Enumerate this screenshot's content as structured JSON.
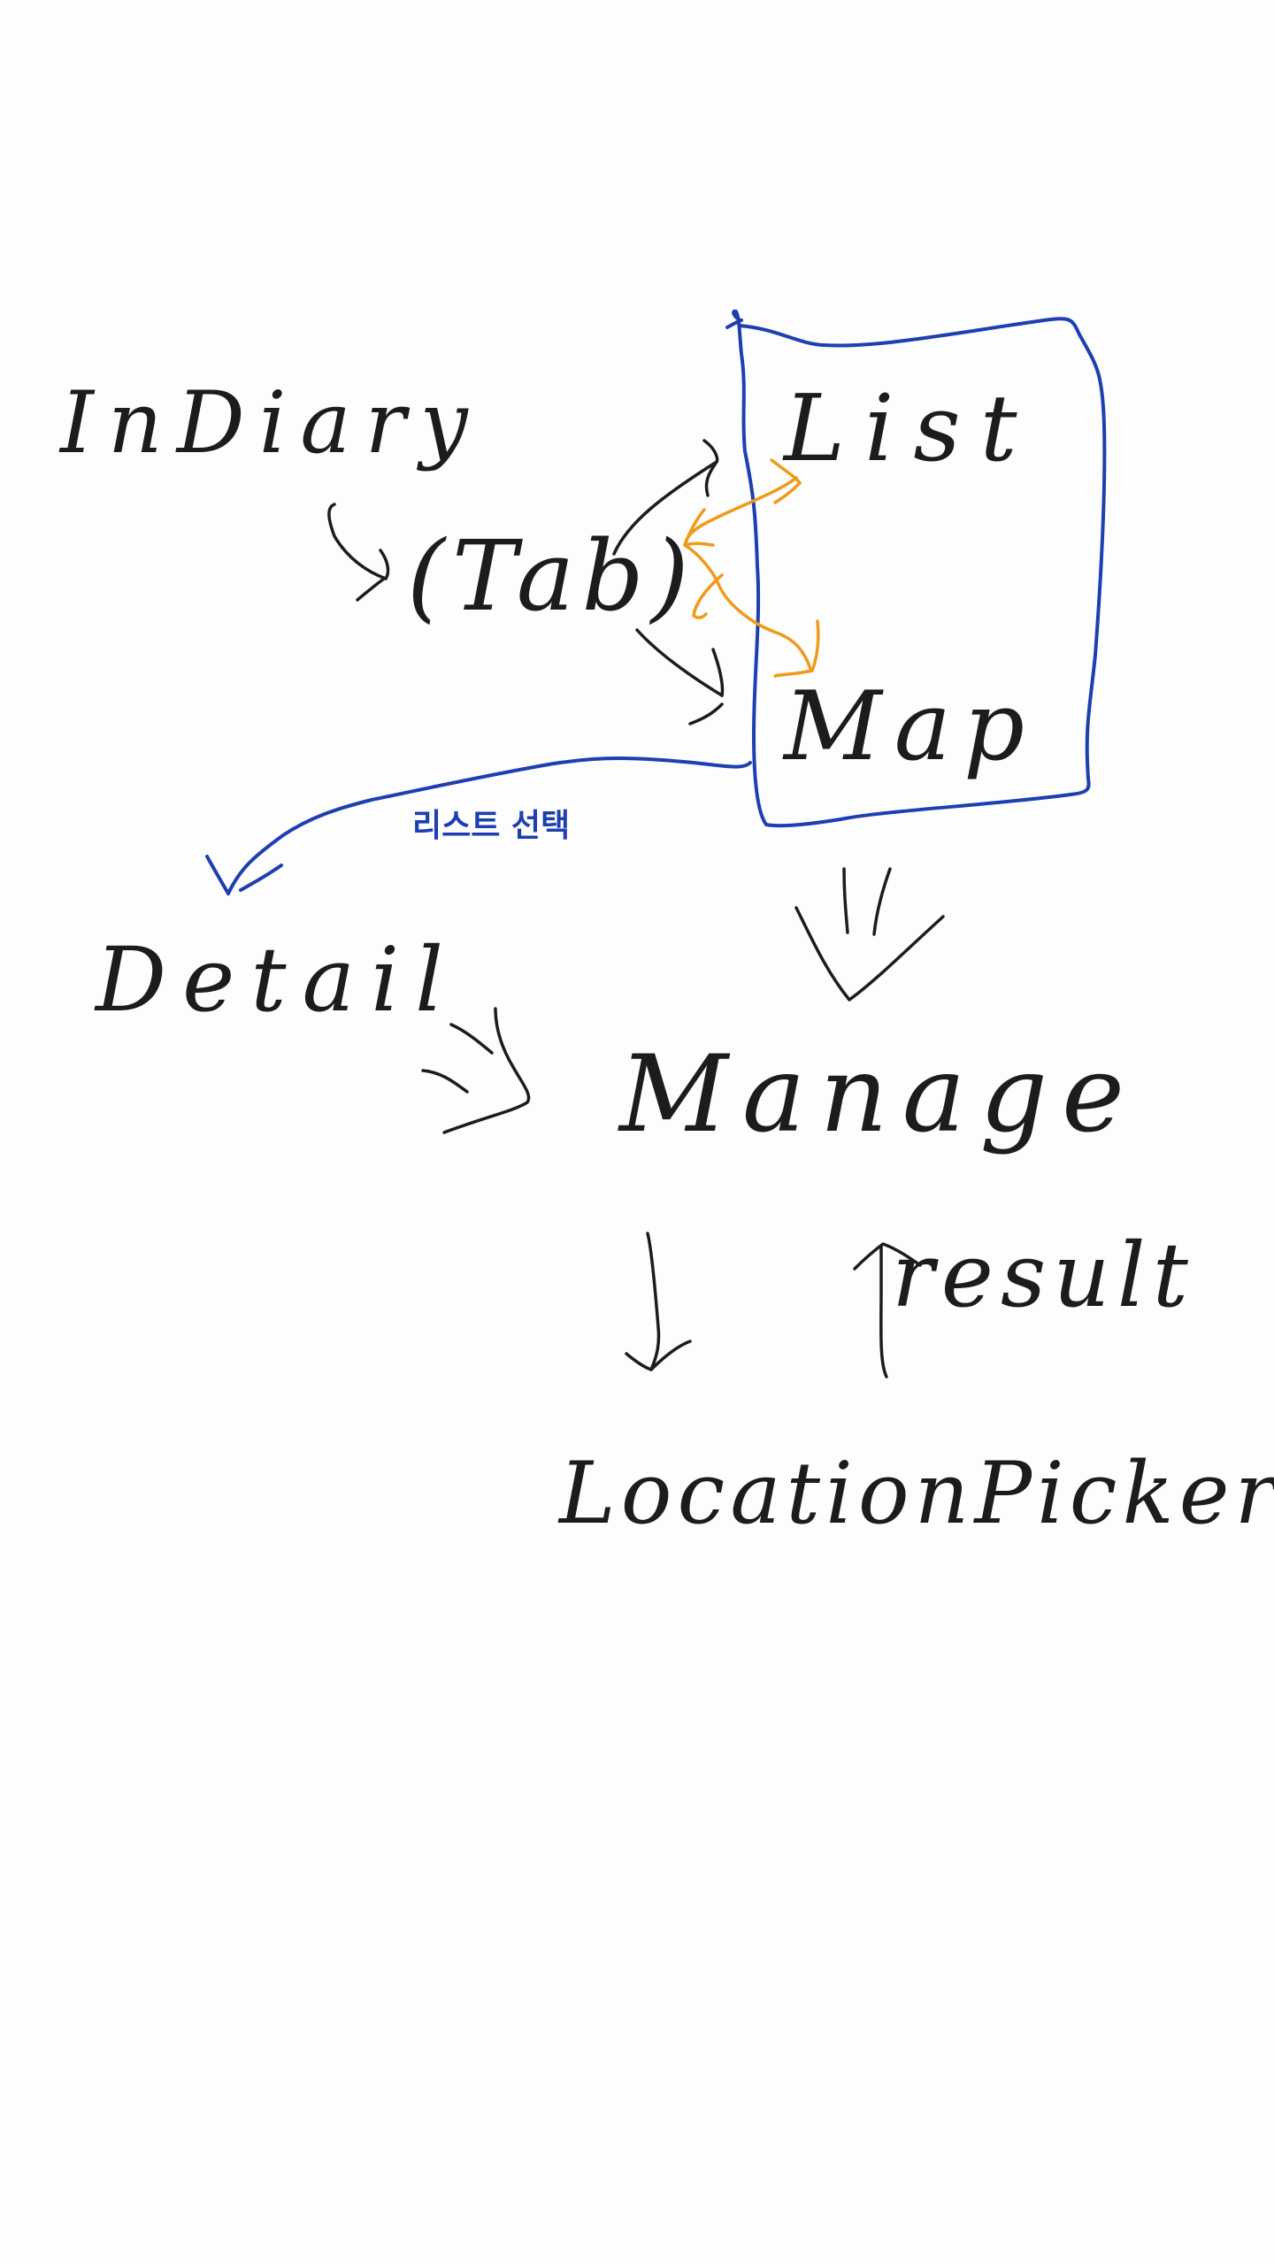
{
  "nodes": {
    "indiary": "InDiary",
    "tab": "(Tab)",
    "list": "List",
    "map": "Map",
    "detail": "Detail",
    "manage": "Manage",
    "result": "result",
    "location_picker": "LocationPicker"
  },
  "edges": {
    "list_select": "리스트 선택"
  },
  "colors": {
    "background": "#fdfdfd",
    "ink": "#1c1c1c",
    "blue": "#1d3fb0",
    "orange": "#f09a1a"
  }
}
